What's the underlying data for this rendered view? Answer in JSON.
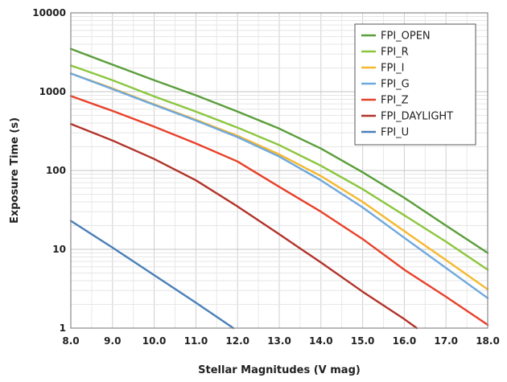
{
  "chart_data": {
    "type": "line",
    "xlabel": "Stellar Magnitudes (V mag)",
    "ylabel": "Exposure Time (s)",
    "xlim": [
      8.0,
      18.0
    ],
    "ylim": [
      1,
      10000
    ],
    "yscale": "log",
    "grid": true,
    "legend_position": "top-right",
    "x_ticks": [
      "8.0",
      "9.0",
      "10.0",
      "11.0",
      "12.0",
      "13.0",
      "14.0",
      "15.0",
      "16.0",
      "17.0",
      "18.0"
    ],
    "y_ticks": [
      "1",
      "10",
      "100",
      "1000",
      "10000"
    ],
    "series": [
      {
        "name": "FPI_OPEN",
        "color": "#5a9e3a",
        "x": [
          8,
          9,
          10,
          11,
          12,
          13,
          14,
          15,
          16,
          17,
          18
        ],
        "y": [
          3500,
          2200,
          1400,
          900,
          560,
          340,
          190,
          95,
          45,
          20,
          9
        ]
      },
      {
        "name": "FPI_R",
        "color": "#8cc63e",
        "x": [
          8,
          9,
          10,
          11,
          12,
          13,
          14,
          15,
          16,
          17,
          18
        ],
        "y": [
          2150,
          1400,
          870,
          560,
          350,
          210,
          115,
          58,
          27,
          12.5,
          5.5
        ]
      },
      {
        "name": "FPI_I",
        "color": "#f5b82e",
        "x": [
          8,
          9,
          10,
          11,
          12,
          13,
          14,
          15,
          16,
          17,
          18
        ],
        "y": [
          1700,
          1100,
          690,
          440,
          275,
          160,
          85,
          40,
          17,
          7.3,
          3.1
        ]
      },
      {
        "name": "FPI_G",
        "color": "#6fa8dc",
        "x": [
          8,
          9,
          10,
          11,
          12,
          13,
          14,
          15,
          16,
          17,
          18
        ],
        "y": [
          1700,
          1080,
          680,
          430,
          265,
          150,
          75,
          34,
          14,
          5.8,
          2.4
        ]
      },
      {
        "name": "FPI_Z",
        "color": "#e8412b",
        "x": [
          8,
          9,
          10,
          11,
          12,
          13,
          14,
          15,
          16,
          17,
          18
        ],
        "y": [
          880,
          570,
          360,
          220,
          130,
          62,
          30,
          13.5,
          5.5,
          2.5,
          1.1
        ]
      },
      {
        "name": "FPI_DAYLIGHT",
        "color": "#b2332a",
        "x": [
          8,
          9,
          10,
          11,
          12,
          13,
          14,
          15,
          16,
          16.3
        ],
        "y": [
          390,
          240,
          140,
          75,
          35,
          15.5,
          6.8,
          2.9,
          1.3,
          1
        ]
      },
      {
        "name": "FPI_U",
        "color": "#4a7fb8",
        "x": [
          8,
          9,
          10,
          11,
          11.9
        ],
        "y": [
          23,
          10.5,
          4.7,
          2.1,
          1
        ]
      }
    ]
  }
}
